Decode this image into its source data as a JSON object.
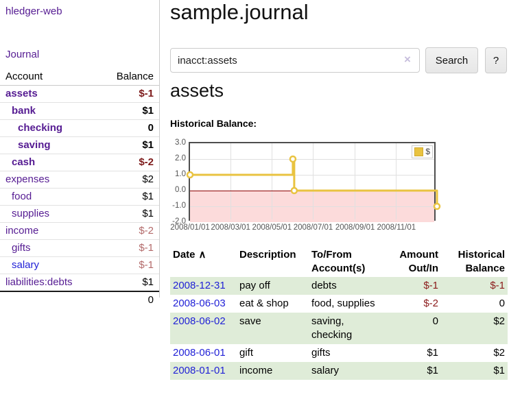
{
  "sidebar": {
    "app_title": "hledger-web",
    "nav": {
      "journal": "Journal"
    },
    "accounts_table": {
      "col_account": "Account",
      "col_balance": "Balance",
      "rows": [
        {
          "name": "assets",
          "indent": 1,
          "bold": true,
          "balance": "$-1",
          "neg": "strong"
        },
        {
          "name": "bank",
          "indent": 2,
          "bold": true,
          "balance": "$1",
          "neg": "none"
        },
        {
          "name": "checking",
          "indent": 3,
          "bold": true,
          "balance": "0",
          "neg": "none"
        },
        {
          "name": "saving",
          "indent": 3,
          "bold": true,
          "balance": "$1",
          "neg": "none"
        },
        {
          "name": "cash",
          "indent": 2,
          "bold": true,
          "balance": "$-2",
          "neg": "strong"
        },
        {
          "name": "expenses",
          "indent": 1,
          "bold": false,
          "balance": "$2",
          "neg": "none"
        },
        {
          "name": "food",
          "indent": 2,
          "bold": false,
          "balance": "$1",
          "neg": "none"
        },
        {
          "name": "supplies",
          "indent": 2,
          "bold": false,
          "balance": "$1",
          "neg": "none"
        },
        {
          "name": "income",
          "indent": 1,
          "bold": false,
          "balance": "$-2",
          "neg": "soft"
        },
        {
          "name": "gifts",
          "indent": 2,
          "bold": false,
          "balance": "$-1",
          "neg": "soft"
        },
        {
          "name": "salary",
          "indent": 2,
          "bold": false,
          "balance": "$-1",
          "neg": "soft",
          "blue": true
        },
        {
          "name": "liabilities:debts",
          "indent": 1,
          "bold": false,
          "balance": "$1",
          "neg": "none"
        }
      ],
      "total": "0"
    }
  },
  "main": {
    "title": "sample.journal",
    "search": {
      "value": "inacct:assets",
      "clear_icon": "×",
      "button": "Search",
      "help_button": "?"
    },
    "account_heading": "assets",
    "chart_label": "Historical Balance:",
    "register": {
      "headers": {
        "date": "Date",
        "sort_icon": "∧",
        "description": "Description",
        "accounts": "To/From Account(s)",
        "amount": "Amount Out/In",
        "balance": "Historical Balance"
      },
      "rows": [
        {
          "date": "2008-12-31",
          "description": "pay off",
          "accounts": "debts",
          "amount": "$-1",
          "amount_negative": true,
          "balance": "$-1",
          "balance_negative": true
        },
        {
          "date": "2008-06-03",
          "description": "eat & shop",
          "accounts": "food, supplies",
          "amount": "$-2",
          "amount_negative": true,
          "balance": "0",
          "balance_negative": false
        },
        {
          "date": "2008-06-02",
          "description": "save",
          "accounts": "saving, checking",
          "amount": "0",
          "amount_negative": false,
          "balance": "$2",
          "balance_negative": false
        },
        {
          "date": "2008-06-01",
          "description": "gift",
          "accounts": "gifts",
          "amount": "$1",
          "amount_negative": false,
          "balance": "$2",
          "balance_negative": false
        },
        {
          "date": "2008-01-01",
          "description": "income",
          "accounts": "salary",
          "amount": "$1",
          "amount_negative": false,
          "balance": "$1",
          "balance_negative": false
        }
      ]
    }
  },
  "chart_data": {
    "type": "line",
    "title": "Historical Balance",
    "step": true,
    "legend": [
      {
        "label": "$",
        "color": "#E9C340"
      }
    ],
    "ylim": [
      -2,
      3
    ],
    "y_ticks": [
      3.0,
      2.0,
      1.0,
      0.0,
      -1.0,
      -2.0
    ],
    "x_range_days": [
      0,
      365
    ],
    "x_ticks": [
      {
        "label": "2008/01/01",
        "day": 0
      },
      {
        "label": "2008/03/01",
        "day": 60
      },
      {
        "label": "2008/05/01",
        "day": 121
      },
      {
        "label": "2008/07/01",
        "day": 182
      },
      {
        "label": "2008/09/01",
        "day": 244
      },
      {
        "label": "2008/11/01",
        "day": 305
      }
    ],
    "points": [
      {
        "date": "2008-01-01",
        "day": 0,
        "value": 1
      },
      {
        "date": "2008-06-01",
        "day": 152,
        "value": 2
      },
      {
        "date": "2008-06-03",
        "day": 154,
        "value": 0
      },
      {
        "date": "2008-12-31",
        "day": 365,
        "value": -1
      }
    ],
    "series_color": "#E9C340",
    "marker_fill": "#ffffff",
    "negative_region_color": "#fcdbdb",
    "zero_line_color": "#8b0000",
    "grid": true,
    "legend_position": "top-right"
  },
  "colors": {
    "link_purple": "#551b92",
    "link_blue": "#1f1fd6",
    "negative_strong": "#7d1a1a",
    "negative_soft": "#b36a6a",
    "row_green": "#dfecd8"
  }
}
